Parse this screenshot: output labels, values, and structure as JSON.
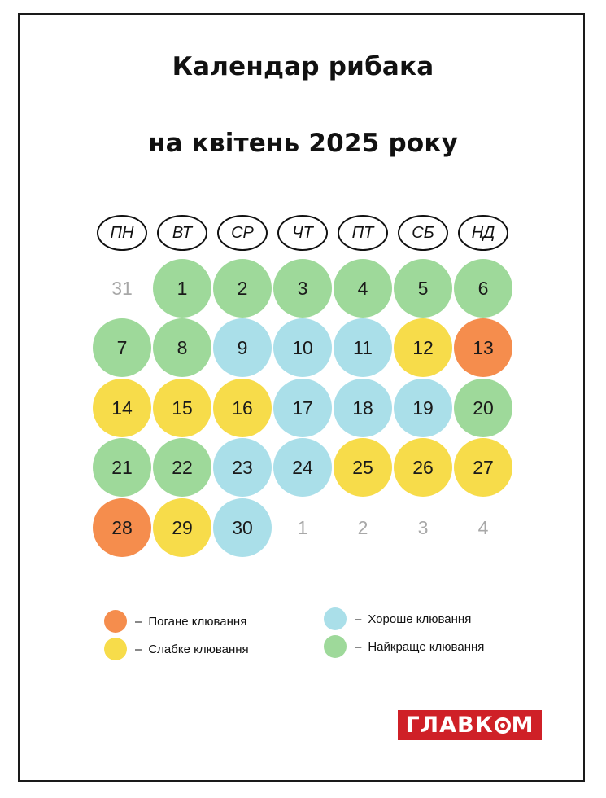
{
  "title_line1": "Календар рибака",
  "title_line2": "на квітень 2025 року",
  "weekdays": [
    "ПН",
    "ВТ",
    "СР",
    "ЧТ",
    "ПТ",
    "СБ",
    "НД"
  ],
  "colors": {
    "bad": "#f58d4d",
    "weak": "#f7dc4a",
    "good": "#aadfe9",
    "best": "#9ed99a",
    "other_month_text": "#a8a8a8"
  },
  "weeks": [
    [
      {
        "day": "31",
        "type": "other"
      },
      {
        "day": "1",
        "type": "best"
      },
      {
        "day": "2",
        "type": "best"
      },
      {
        "day": "3",
        "type": "best"
      },
      {
        "day": "4",
        "type": "best"
      },
      {
        "day": "5",
        "type": "best"
      },
      {
        "day": "6",
        "type": "best"
      }
    ],
    [
      {
        "day": "7",
        "type": "best"
      },
      {
        "day": "8",
        "type": "best"
      },
      {
        "day": "9",
        "type": "good"
      },
      {
        "day": "10",
        "type": "good"
      },
      {
        "day": "11",
        "type": "good"
      },
      {
        "day": "12",
        "type": "weak"
      },
      {
        "day": "13",
        "type": "bad"
      }
    ],
    [
      {
        "day": "14",
        "type": "weak"
      },
      {
        "day": "15",
        "type": "weak"
      },
      {
        "day": "16",
        "type": "weak"
      },
      {
        "day": "17",
        "type": "good"
      },
      {
        "day": "18",
        "type": "good"
      },
      {
        "day": "19",
        "type": "good"
      },
      {
        "day": "20",
        "type": "best"
      }
    ],
    [
      {
        "day": "21",
        "type": "best"
      },
      {
        "day": "22",
        "type": "best"
      },
      {
        "day": "23",
        "type": "good"
      },
      {
        "day": "24",
        "type": "good"
      },
      {
        "day": "25",
        "type": "weak"
      },
      {
        "day": "26",
        "type": "weak"
      },
      {
        "day": "27",
        "type": "weak"
      }
    ],
    [
      {
        "day": "28",
        "type": "bad"
      },
      {
        "day": "29",
        "type": "weak"
      },
      {
        "day": "30",
        "type": "good"
      },
      {
        "day": "1",
        "type": "other"
      },
      {
        "day": "2",
        "type": "other"
      },
      {
        "day": "3",
        "type": "other"
      },
      {
        "day": "4",
        "type": "other"
      }
    ]
  ],
  "legend": [
    {
      "type": "bad",
      "dash": "–",
      "label": "Погане клювання"
    },
    {
      "type": "weak",
      "dash": "–",
      "label": "Слабке клювання"
    },
    {
      "type": "good",
      "dash": "–",
      "label": "Хороше клювання"
    },
    {
      "type": "best",
      "dash": "–",
      "label": "Найкраще клювання"
    }
  ],
  "logo": {
    "text_left": "ГЛАВК",
    "text_right": "М"
  }
}
